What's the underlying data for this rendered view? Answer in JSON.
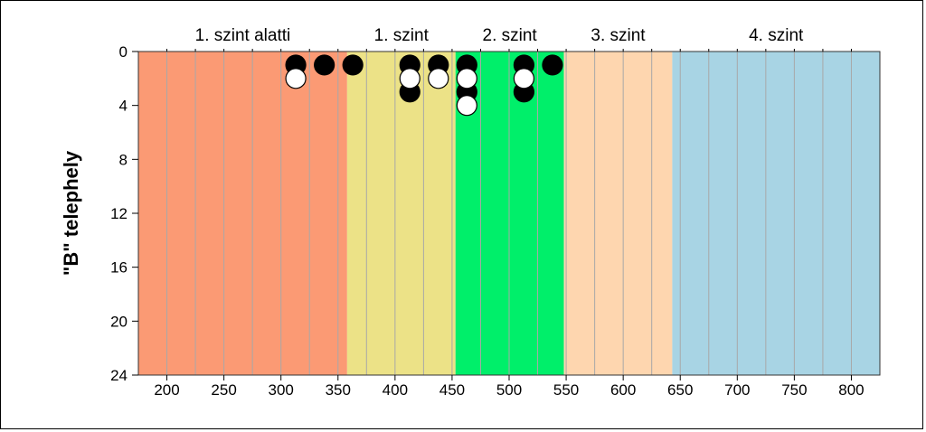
{
  "chart_data": {
    "type": "scatter",
    "title": "",
    "xlabel": "",
    "ylabel": "\"B\" telephely",
    "xlim": [
      175,
      825
    ],
    "ylim": [
      0,
      24
    ],
    "y_inverted": true,
    "x_ticks": [
      200,
      250,
      300,
      350,
      400,
      450,
      500,
      550,
      600,
      650,
      700,
      750,
      800
    ],
    "y_ticks": [
      0,
      4,
      8,
      12,
      16,
      20,
      24
    ],
    "x_gridlines": [
      200,
      225,
      250,
      275,
      300,
      325,
      350,
      375,
      400,
      425,
      450,
      475,
      500,
      525,
      550,
      575,
      600,
      625,
      650,
      675,
      700,
      725,
      750,
      775,
      800
    ],
    "grid": "vertical",
    "zones": [
      {
        "label": "1. szint alatti",
        "from": 175,
        "to": 358,
        "color": "#fb9a74"
      },
      {
        "label": "1. szint",
        "from": 358,
        "to": 453,
        "color": "#ece287"
      },
      {
        "label": "2. szint",
        "from": 453,
        "to": 548,
        "color": "#00ef6a"
      },
      {
        "label": "3. szint",
        "from": 548,
        "to": 643,
        "color": "#fed6af"
      },
      {
        "label": "4. szint",
        "from": 643,
        "to": 825,
        "color": "#a8d4e4"
      }
    ],
    "series": [
      {
        "fill": "#000000",
        "points": [
          [
            313,
            1
          ],
          [
            338,
            1
          ],
          [
            363,
            1
          ],
          [
            413,
            1
          ],
          [
            438,
            1
          ],
          [
            463,
            1
          ],
          [
            513,
            1
          ],
          [
            538,
            1
          ],
          [
            413,
            3
          ],
          [
            463,
            3
          ],
          [
            513,
            3
          ]
        ]
      },
      {
        "fill": "#ffffff",
        "points": [
          [
            313,
            2
          ],
          [
            413,
            2
          ],
          [
            438,
            2
          ],
          [
            463,
            2
          ],
          [
            513,
            2
          ],
          [
            463,
            4
          ]
        ]
      }
    ]
  }
}
